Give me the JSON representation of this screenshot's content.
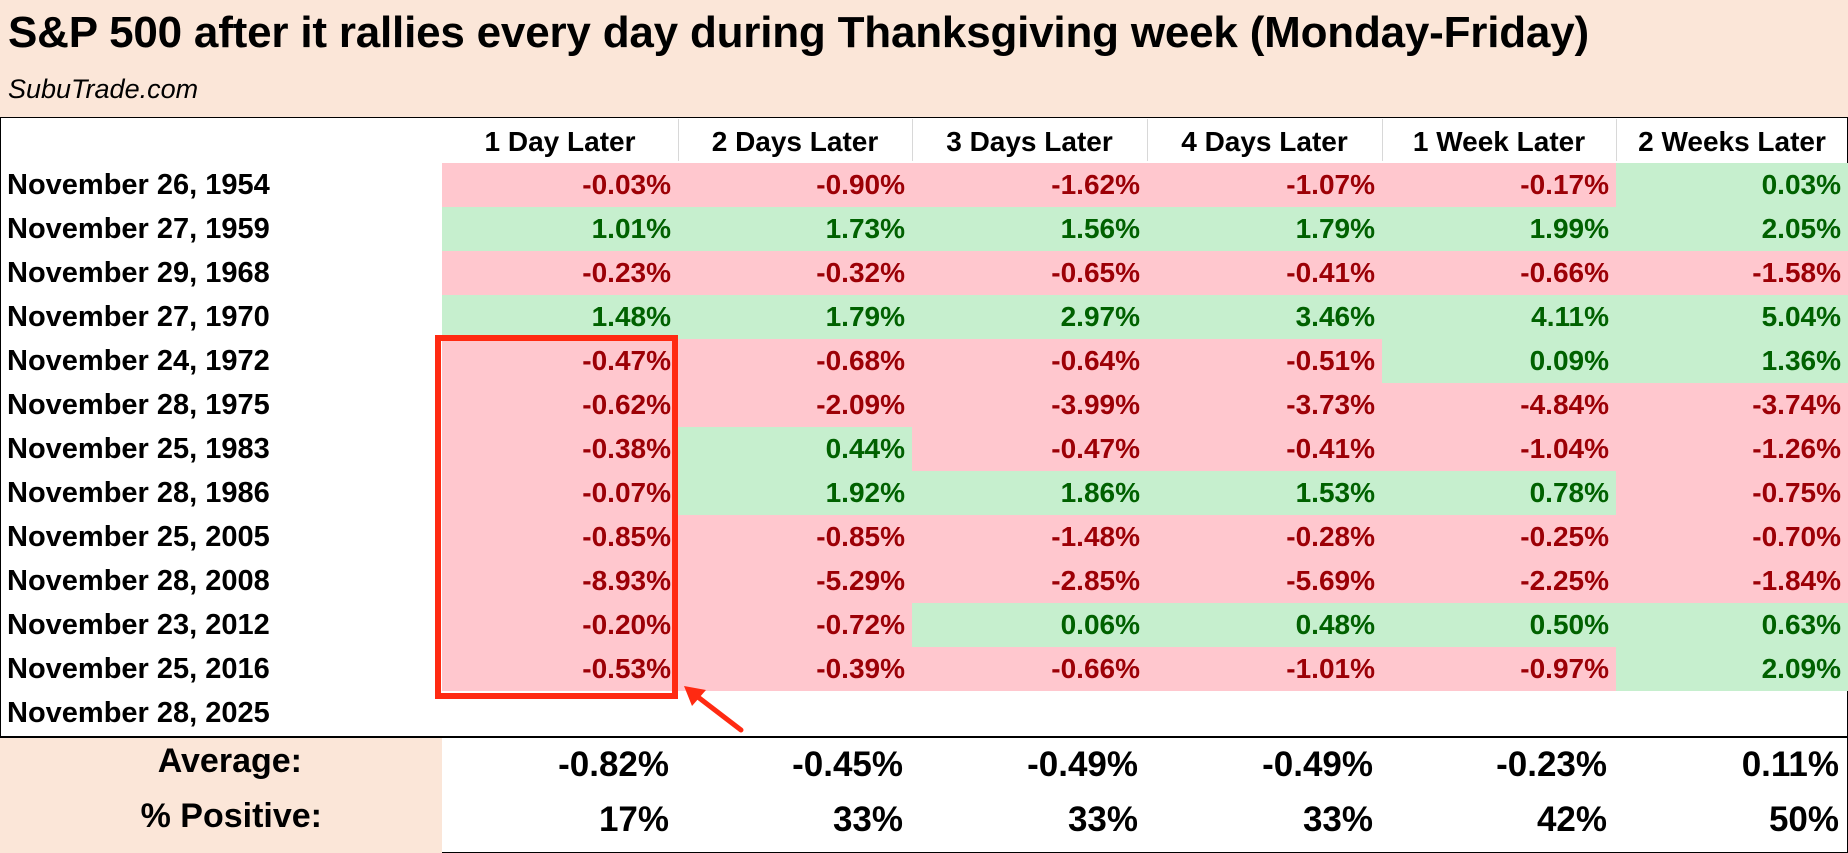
{
  "header": {
    "title": "S&P 500 after it rallies every day during Thanksgiving week (Monday-Friday)",
    "subtitle": "SubuTrade.com"
  },
  "colors": {
    "header_bg": "#fbe6d8",
    "negative_bg": "#ffc7ce",
    "negative_text": "#9c0006",
    "positive_bg": "#c6efce",
    "positive_text": "#006100",
    "highlight": "#ff2a12"
  },
  "chart_data": {
    "type": "table",
    "columns": [
      "1 Day Later",
      "2 Days Later",
      "3 Days Later",
      "4 Days Later",
      "1 Week Later",
      "2 Weeks Later"
    ],
    "rows": [
      {
        "label": "November 26, 1954",
        "values": [
          "-0.03%",
          "-0.90%",
          "-1.62%",
          "-1.07%",
          "-0.17%",
          "0.03%"
        ]
      },
      {
        "label": "November 27, 1959",
        "values": [
          "1.01%",
          "1.73%",
          "1.56%",
          "1.79%",
          "1.99%",
          "2.05%"
        ]
      },
      {
        "label": "November 29, 1968",
        "values": [
          "-0.23%",
          "-0.32%",
          "-0.65%",
          "-0.41%",
          "-0.66%",
          "-1.58%"
        ]
      },
      {
        "label": "November 27, 1970",
        "values": [
          "1.48%",
          "1.79%",
          "2.97%",
          "3.46%",
          "4.11%",
          "5.04%"
        ]
      },
      {
        "label": "November 24, 1972",
        "values": [
          "-0.47%",
          "-0.68%",
          "-0.64%",
          "-0.51%",
          "0.09%",
          "1.36%"
        ]
      },
      {
        "label": "November 28, 1975",
        "values": [
          "-0.62%",
          "-2.09%",
          "-3.99%",
          "-3.73%",
          "-4.84%",
          "-3.74%"
        ]
      },
      {
        "label": "November 25, 1983",
        "values": [
          "-0.38%",
          "0.44%",
          "-0.47%",
          "-0.41%",
          "-1.04%",
          "-1.26%"
        ]
      },
      {
        "label": "November 28, 1986",
        "values": [
          "-0.07%",
          "1.92%",
          "1.86%",
          "1.53%",
          "0.78%",
          "-0.75%"
        ]
      },
      {
        "label": "November 25, 2005",
        "values": [
          "-0.85%",
          "-0.85%",
          "-1.48%",
          "-0.28%",
          "-0.25%",
          "-0.70%"
        ]
      },
      {
        "label": "November 28, 2008",
        "values": [
          "-8.93%",
          "-5.29%",
          "-2.85%",
          "-5.69%",
          "-2.25%",
          "-1.84%"
        ]
      },
      {
        "label": "November 23, 2012",
        "values": [
          "-0.20%",
          "-0.72%",
          "0.06%",
          "0.48%",
          "0.50%",
          "0.63%"
        ]
      },
      {
        "label": "November 25, 2016",
        "values": [
          "-0.53%",
          "-0.39%",
          "-0.66%",
          "-1.01%",
          "-0.97%",
          "2.09%"
        ]
      },
      {
        "label": "November 28, 2025",
        "values": [
          "",
          "",
          "",
          "",
          "",
          ""
        ]
      }
    ],
    "summary": [
      {
        "label": "Average:",
        "values": [
          "-0.82%",
          "-0.45%",
          "-0.49%",
          "-0.49%",
          "-0.23%",
          "0.11%"
        ]
      },
      {
        "label": "% Positive:",
        "values": [
          "17%",
          "33%",
          "33%",
          "33%",
          "42%",
          "50%"
        ]
      }
    ]
  }
}
